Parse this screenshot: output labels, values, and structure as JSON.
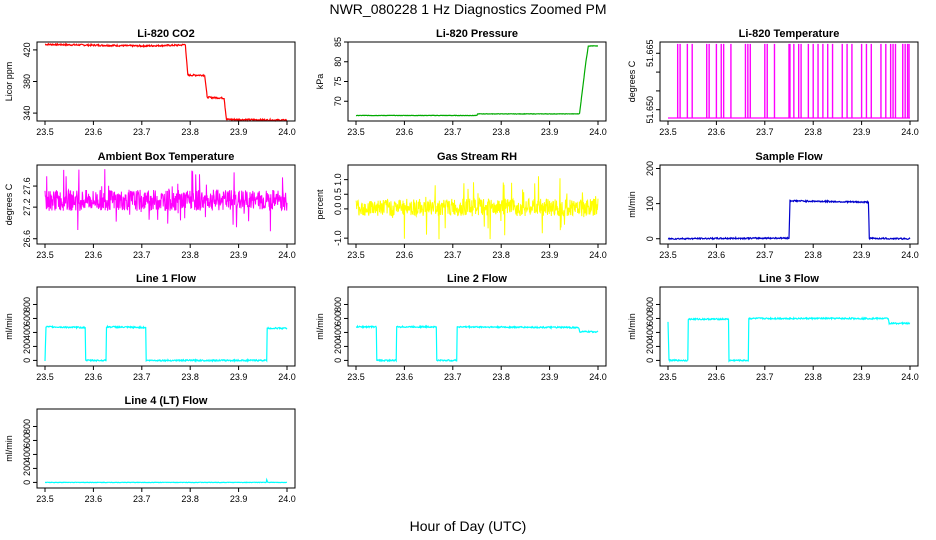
{
  "title": "NWR_080228  1 Hz Diagnostics Zoomed PM",
  "xlabel": "Hour of Day (UTC)",
  "chart_data": [
    {
      "type": "line",
      "title": "Li-820 CO2",
      "ylabel": "Licor ppm",
      "color": "#ff0000",
      "xlim": [
        23.5,
        24.0
      ],
      "ylim": [
        330,
        430
      ],
      "xticks": [
        "23.5",
        "23.6",
        "23.7",
        "23.8",
        "23.9",
        "24.0"
      ],
      "yticks": [
        {
          "v": 340,
          "t": "340"
        },
        {
          "v": 380,
          "t": "380"
        },
        {
          "v": 420,
          "t": "420"
        }
      ],
      "series": [
        {
          "x": [
            23.5,
            23.6,
            23.7,
            23.78,
            23.79,
            23.795,
            23.83,
            23.835,
            23.87,
            23.875,
            24.0
          ],
          "y": [
            427,
            426,
            425,
            426,
            427,
            388,
            388,
            360,
            359,
            332,
            331
          ],
          "noise": 1
        }
      ]
    },
    {
      "type": "line",
      "title": "Li-820 Pressure",
      "ylabel": "kPa",
      "color": "#00aa00",
      "xlim": [
        23.5,
        24.0
      ],
      "ylim": [
        65,
        85
      ],
      "xticks": [
        "23.5",
        "23.6",
        "23.7",
        "23.8",
        "23.9",
        "24.0"
      ],
      "yticks": [
        {
          "v": 70,
          "t": "70"
        },
        {
          "v": 75,
          "t": "75"
        },
        {
          "v": 80,
          "t": "80"
        },
        {
          "v": 85,
          "t": "85"
        }
      ],
      "series": [
        {
          "x": [
            23.5,
            23.75,
            23.751,
            23.96,
            23.962,
            23.965,
            23.97,
            23.975,
            23.98,
            24.0
          ],
          "y": [
            66.4,
            66.4,
            66.8,
            66.8,
            67,
            70,
            75,
            80,
            84,
            84
          ],
          "noise": 0.05
        }
      ]
    },
    {
      "type": "spikes",
      "title": "Li-820 Temperature",
      "ylabel": "degrees C",
      "color": "#ff00ff",
      "xlim": [
        23.5,
        24.0
      ],
      "ylim": [
        51.647,
        51.668
      ],
      "xticks": [
        "23.5",
        "23.6",
        "23.7",
        "23.8",
        "23.9",
        "24.0"
      ],
      "yticks": [
        {
          "v": 51.65,
          "t": "51.650"
        },
        {
          "v": 51.655,
          "t": ""
        },
        {
          "v": 51.66,
          "t": ""
        },
        {
          "v": 51.665,
          "t": "51.665"
        }
      ],
      "base": 51.6478,
      "top": 51.6675,
      "spikes": [
        23.52,
        23.525,
        23.54,
        23.55,
        23.58,
        23.585,
        23.6,
        23.61,
        23.615,
        23.63,
        23.66,
        23.665,
        23.67,
        23.7,
        23.705,
        23.72,
        23.75,
        23.752,
        23.76,
        23.77,
        23.775,
        23.79,
        23.8,
        23.81,
        23.82,
        23.83,
        23.84,
        23.86,
        23.87,
        23.88,
        23.9,
        23.91,
        23.92,
        23.94,
        23.95,
        23.96,
        23.965,
        23.97,
        23.985,
        23.99,
        23.995,
        23.998
      ]
    },
    {
      "type": "band",
      "title": "Ambient Box Temperature",
      "ylabel": "degrees C",
      "color": "#ff00ff",
      "xlim": [
        23.5,
        24.0
      ],
      "ylim": [
        26.5,
        28.0
      ],
      "xticks": [
        "23.5",
        "23.6",
        "23.7",
        "23.8",
        "23.9",
        "24.0"
      ],
      "yticks": [
        {
          "v": 26.6,
          "t": "26.6"
        },
        {
          "v": 27.2,
          "t": "27.2"
        },
        {
          "v": 27.6,
          "t": "27.6"
        }
      ],
      "center": 27.33,
      "spread": 0.2,
      "spikes": 0.6
    },
    {
      "type": "band",
      "title": "Gas Stream RH",
      "ylabel": "percent",
      "color": "#ffff00",
      "xlim": [
        23.5,
        24.0
      ],
      "ylim": [
        -1.2,
        1.5
      ],
      "xticks": [
        "23.5",
        "23.6",
        "23.7",
        "23.8",
        "23.9",
        "24.0"
      ],
      "yticks": [
        {
          "v": -1.0,
          "t": "-1.0"
        },
        {
          "v": 0.0,
          "t": "0.0"
        },
        {
          "v": 0.5,
          "t": "0.5"
        },
        {
          "v": 1.0,
          "t": "1.0"
        }
      ],
      "center": 0.05,
      "spread": 0.3,
      "spikes": 1.1
    },
    {
      "type": "line",
      "title": "Sample Flow",
      "ylabel": "ml/min",
      "color": "#0000cc",
      "xlim": [
        23.5,
        24.0
      ],
      "ylim": [
        -15,
        210
      ],
      "xticks": [
        "23.5",
        "23.6",
        "23.7",
        "23.8",
        "23.9",
        "24.0"
      ],
      "yticks": [
        {
          "v": 0,
          "t": "0"
        },
        {
          "v": 100,
          "t": "100"
        },
        {
          "v": 200,
          "t": "200"
        }
      ],
      "series": [
        {
          "x": [
            23.5,
            23.75,
            23.752,
            23.914,
            23.916,
            24.0
          ],
          "y": [
            0,
            2,
            108,
            104,
            1,
            0
          ],
          "noise": 2
        }
      ]
    },
    {
      "type": "line",
      "title": "Line 1 Flow",
      "ylabel": "ml/min",
      "color": "#00ffff",
      "xlim": [
        23.5,
        24.0
      ],
      "ylim": [
        -80,
        1050
      ],
      "xticks": [
        "23.5",
        "23.6",
        "23.7",
        "23.8",
        "23.9",
        "24.0"
      ],
      "yticks": [
        {
          "v": 0,
          "t": "0"
        },
        {
          "v": 200,
          "t": "200"
        },
        {
          "v": 400,
          "t": "400"
        },
        {
          "v": 600,
          "t": "600"
        },
        {
          "v": 800,
          "t": "800"
        }
      ],
      "series": [
        {
          "x": [
            23.5,
            23.502,
            23.583,
            23.584,
            23.626,
            23.627,
            23.708,
            23.709,
            23.958,
            23.959,
            24.0
          ],
          "y": [
            0,
            480,
            470,
            0,
            0,
            480,
            470,
            0,
            0,
            460,
            460
          ],
          "noise": 10
        }
      ]
    },
    {
      "type": "line",
      "title": "Line 2 Flow",
      "ylabel": "ml/min",
      "color": "#00ffff",
      "xlim": [
        23.5,
        24.0
      ],
      "ylim": [
        -80,
        1050
      ],
      "xticks": [
        "23.5",
        "23.6",
        "23.7",
        "23.8",
        "23.9",
        "24.0"
      ],
      "yticks": [
        {
          "v": 0,
          "t": "0"
        },
        {
          "v": 200,
          "t": "200"
        },
        {
          "v": 400,
          "t": "400"
        },
        {
          "v": 600,
          "t": "600"
        },
        {
          "v": 800,
          "t": "800"
        }
      ],
      "series": [
        {
          "x": [
            23.5,
            23.542,
            23.543,
            23.583,
            23.584,
            23.666,
            23.667,
            23.708,
            23.709,
            23.96,
            23.962,
            24.0
          ],
          "y": [
            480,
            480,
            0,
            0,
            480,
            480,
            0,
            0,
            480,
            470,
            410,
            410
          ],
          "noise": 10
        }
      ]
    },
    {
      "type": "line",
      "title": "Line 3 Flow",
      "ylabel": "ml/min",
      "color": "#00ffff",
      "xlim": [
        23.5,
        24.0
      ],
      "ylim": [
        -80,
        1050
      ],
      "xticks": [
        "23.5",
        "23.6",
        "23.7",
        "23.8",
        "23.9",
        "24.0"
      ],
      "yticks": [
        {
          "v": 0,
          "t": "0"
        },
        {
          "v": 200,
          "t": "200"
        },
        {
          "v": 400,
          "t": "400"
        },
        {
          "v": 600,
          "t": "600"
        },
        {
          "v": 800,
          "t": "800"
        }
      ],
      "series": [
        {
          "x": [
            23.5,
            23.502,
            23.503,
            23.541,
            23.542,
            23.625,
            23.626,
            23.666,
            23.667,
            23.955,
            23.957,
            24.0
          ],
          "y": [
            560,
            0,
            0,
            0,
            590,
            590,
            0,
            0,
            600,
            600,
            530,
            530
          ],
          "noise": 10
        }
      ]
    },
    {
      "type": "line",
      "title": "Line 4 (LT) Flow",
      "ylabel": "ml/min",
      "color": "#00ffff",
      "xlim": [
        23.5,
        24.0
      ],
      "ylim": [
        -80,
        1050
      ],
      "xticks": [
        "23.5",
        "23.6",
        "23.7",
        "23.8",
        "23.9",
        "24.0"
      ],
      "yticks": [
        {
          "v": 0,
          "t": "0"
        },
        {
          "v": 200,
          "t": "200"
        },
        {
          "v": 400,
          "t": "400"
        },
        {
          "v": 600,
          "t": "600"
        },
        {
          "v": 800,
          "t": "800"
        }
      ],
      "series": [
        {
          "x": [
            23.5,
            23.957,
            23.958,
            23.96,
            23.962,
            24.0
          ],
          "y": [
            0,
            0,
            40,
            5,
            0,
            0
          ],
          "noise": 3
        }
      ]
    }
  ]
}
